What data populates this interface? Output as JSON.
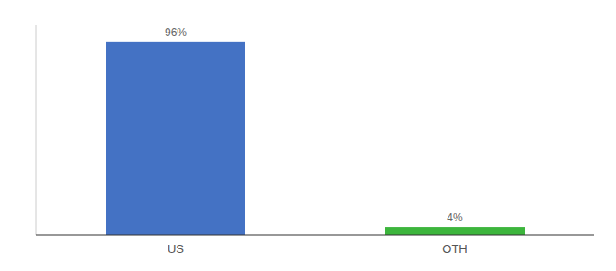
{
  "chart_data": {
    "type": "bar",
    "categories": [
      "US",
      "OTH"
    ],
    "values": [
      96,
      4
    ],
    "value_labels": [
      "96%",
      "4%"
    ],
    "colors": [
      "#4472c4",
      "#3cb53c"
    ],
    "ylim": [
      0,
      104
    ],
    "data_labels": true,
    "tick_labels": "x",
    "grid": false
  }
}
